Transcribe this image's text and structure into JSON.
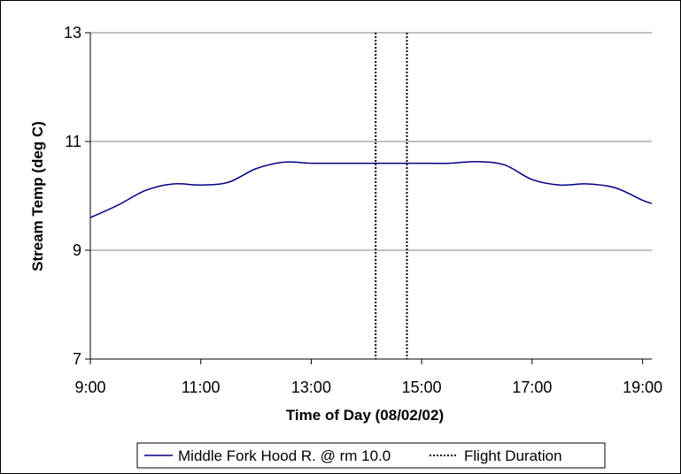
{
  "chart_data": {
    "type": "line",
    "title": "",
    "xlabel": "Time of Day (08/02/02)",
    "ylabel": "Stream Temp (deg C)",
    "xlim": [
      "9:00",
      "19:10"
    ],
    "ylim": [
      7,
      13
    ],
    "x_ticks": [
      "9:00",
      "11:00",
      "13:00",
      "15:00",
      "17:00",
      "19:00"
    ],
    "y_ticks": [
      "7",
      "9",
      "11",
      "13"
    ],
    "grid": "horizontal",
    "legend_position": "bottom",
    "series": [
      {
        "name": "Middle Fork Hood R. @ rm 10.0",
        "color": "#000080",
        "style": "solid",
        "x": [
          "9:00",
          "9:30",
          "10:00",
          "10:30",
          "11:00",
          "11:30",
          "12:00",
          "12:30",
          "13:00",
          "13:30",
          "14:00",
          "14:30",
          "15:00",
          "15:30",
          "16:00",
          "16:30",
          "17:00",
          "17:30",
          "18:00",
          "18:30",
          "19:00",
          "19:10"
        ],
        "y": [
          9.6,
          9.83,
          10.1,
          10.22,
          10.2,
          10.25,
          10.5,
          10.62,
          10.6,
          10.6,
          10.6,
          10.6,
          10.6,
          10.6,
          10.63,
          10.57,
          10.3,
          10.2,
          10.22,
          10.15,
          9.92,
          9.86
        ]
      },
      {
        "name": "Flight Duration",
        "color": "#000000",
        "style": "dotted",
        "x": [
          "14:10",
          "14:44"
        ]
      }
    ]
  }
}
